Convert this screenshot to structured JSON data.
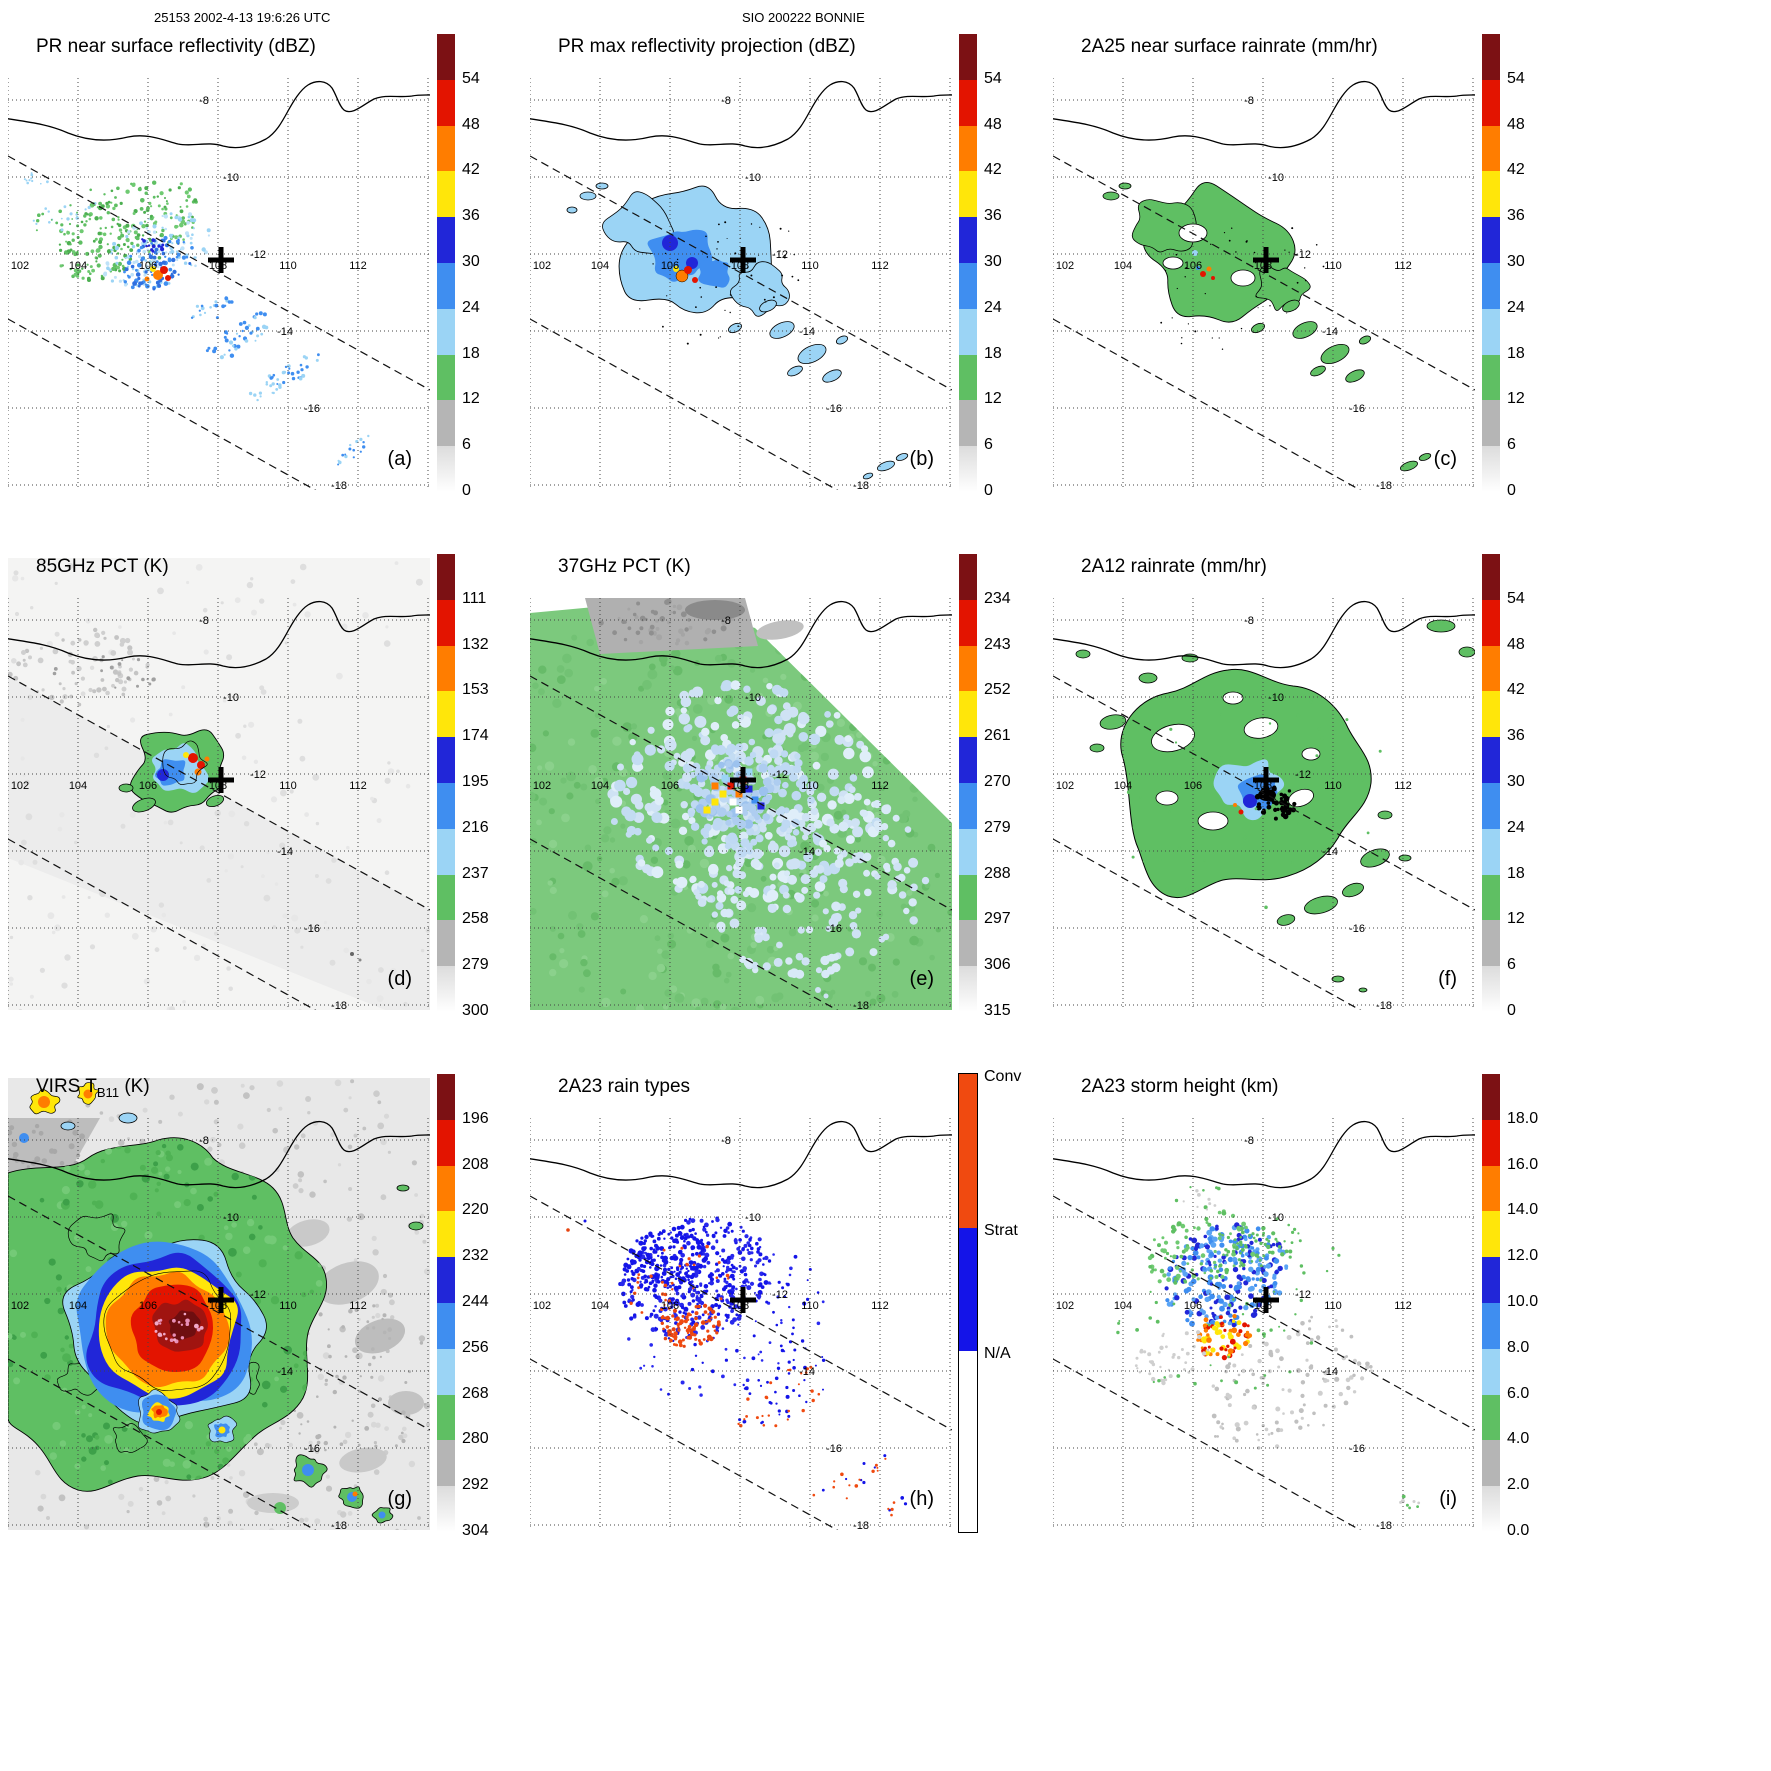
{
  "header": {
    "left": "25153 2002-4-13 19:6:26 UTC",
    "center": "SIO 200222 BONNIE"
  },
  "geo": {
    "lon_labels": [
      "102",
      "104",
      "106",
      "108",
      "110",
      "112"
    ],
    "lat_labels": [
      "-8",
      "-10",
      "-12",
      "-14",
      "-16",
      "-18"
    ],
    "extent": {
      "lon_min": 102,
      "lon_max": 114,
      "lat_min": -18.5,
      "lat_max": -7.5
    },
    "marker_lonlat": [
      108,
      -12
    ],
    "storm_center_approx_lonlat": [
      106.3,
      -12.3
    ]
  },
  "colorbar_palette_top_to_bottom": [
    "#7c1114",
    "#e31400",
    "#ff7d00",
    "#ffe60a",
    "#2126d8",
    "#3f8ef0",
    "#9bd4f5",
    "#5fbf63",
    "#b5b5b5",
    "#f6f6f6"
  ],
  "chart_data": [
    {
      "id": "a",
      "panel_label": "(a)",
      "type": "geo_heatmap",
      "title": "PR near surface reflectivity (dBZ)",
      "units": "dBZ",
      "colorbar": {
        "ticks": [
          "54",
          "48",
          "42",
          "36",
          "30",
          "24",
          "18",
          "12",
          "6",
          "0"
        ]
      }
    },
    {
      "id": "b",
      "panel_label": "(b)",
      "type": "geo_heatmap",
      "title": "PR max reflectivity projection (dBZ)",
      "units": "dBZ",
      "colorbar": {
        "ticks": [
          "54",
          "48",
          "42",
          "36",
          "30",
          "24",
          "18",
          "12",
          "6",
          "0"
        ]
      }
    },
    {
      "id": "c",
      "panel_label": "(c)",
      "type": "geo_heatmap",
      "title": "2A25 near surface rainrate (mm/hr)",
      "units": "mm/hr",
      "colorbar": {
        "ticks": [
          "54",
          "48",
          "42",
          "36",
          "30",
          "24",
          "18",
          "12",
          "6",
          "0"
        ]
      }
    },
    {
      "id": "d",
      "panel_label": "(d)",
      "type": "geo_heatmap",
      "title": "85GHz PCT (K)",
      "units": "K",
      "colorbar": {
        "ticks": [
          "111",
          "132",
          "153",
          "174",
          "195",
          "216",
          "237",
          "258",
          "279",
          "300"
        ]
      }
    },
    {
      "id": "e",
      "panel_label": "(e)",
      "type": "geo_heatmap",
      "title": "37GHz PCT (K)",
      "units": "K",
      "colorbar": {
        "ticks": [
          "234",
          "243",
          "252",
          "261",
          "270",
          "279",
          "288",
          "297",
          "306",
          "315"
        ]
      }
    },
    {
      "id": "f",
      "panel_label": "(f)",
      "type": "geo_heatmap",
      "title": "2A12 rainrate (mm/hr)",
      "units": "mm/hr",
      "colorbar": {
        "ticks": [
          "54",
          "48",
          "42",
          "36",
          "30",
          "24",
          "18",
          "12",
          "6",
          "0"
        ]
      }
    },
    {
      "id": "g",
      "panel_label": "(g)",
      "type": "geo_heatmap",
      "title": "VIRS T",
      "title_sub": "B11",
      "title_suffix": " (K)",
      "units": "K",
      "colorbar": {
        "ticks": [
          "196",
          "208",
          "220",
          "232",
          "244",
          "256",
          "268",
          "280",
          "292",
          "304"
        ]
      }
    },
    {
      "id": "h",
      "panel_label": "(h)",
      "type": "geo_categorical",
      "title": "2A23 rain types",
      "units": "category",
      "colorbar": {
        "labels": [
          "Conv",
          "Strat",
          "N/A"
        ],
        "colors_top_to_bottom": [
          "#f04a10",
          "#1414e8",
          "#ffffff"
        ],
        "segment_fractions": [
          0.336,
          0.269,
          0.395
        ]
      }
    },
    {
      "id": "i",
      "panel_label": "(i)",
      "type": "geo_heatmap",
      "title": "2A23 storm height (km)",
      "units": "km",
      "colorbar": {
        "ticks": [
          "18.0",
          "16.0",
          "14.0",
          "12.0",
          "10.0",
          "8.0",
          "6.0",
          "4.0",
          "2.0",
          "0.0"
        ]
      }
    }
  ]
}
